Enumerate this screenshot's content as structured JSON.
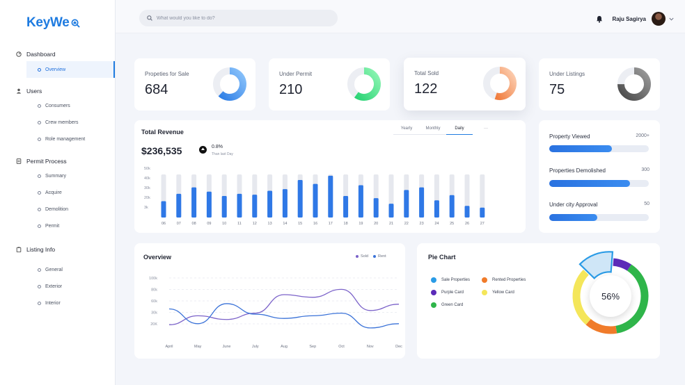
{
  "brand": {
    "name": "KeyWe"
  },
  "sidebar": {
    "sections": [
      {
        "label": "Dashboard",
        "icon": "dashboard-icon",
        "items": [
          {
            "label": "Overview",
            "active": true
          }
        ]
      },
      {
        "label": "Users",
        "icon": "user-icon",
        "items": [
          {
            "label": "Consumers"
          },
          {
            "label": "Crew members"
          },
          {
            "label": "Role management"
          }
        ]
      },
      {
        "label": "Permit Process",
        "icon": "document-icon",
        "items": [
          {
            "label": "Summary"
          },
          {
            "label": "Acquire"
          },
          {
            "label": "Demolition"
          },
          {
            "label": "Permit"
          }
        ]
      },
      {
        "label": "Listing Info",
        "icon": "clipboard-icon",
        "items": [
          {
            "label": "General"
          },
          {
            "label": "Exterior"
          },
          {
            "label": "Interior"
          }
        ]
      }
    ]
  },
  "topbar": {
    "search_placeholder": "What would you like to do?",
    "user_name": "Raju Sagirya"
  },
  "stats": [
    {
      "title": "Propeties for Sale",
      "value": "684",
      "fraction": 0.62,
      "colors": [
        "#2f7fe6",
        "#8cc4fb"
      ]
    },
    {
      "title": "Under Permit",
      "value": "210",
      "fraction": 0.6,
      "colors": [
        "#2bd476",
        "#8ef5b3"
      ]
    },
    {
      "title": "Total Sold",
      "value": "122",
      "fraction": 0.55,
      "colors": [
        "#f07b3c",
        "#fcd0b4"
      ]
    },
    {
      "title": "Under Listings",
      "value": "75",
      "fraction": 0.75,
      "colors": [
        "#4a4a4a",
        "#9a9a9a"
      ]
    }
  ],
  "revenue": {
    "title": "Total Revenue",
    "amount": "$236,535",
    "change": "0.8%",
    "change_label": "Than last Day",
    "tabs": [
      "Yearly",
      "Monthly",
      "Daily"
    ],
    "active_tab": "Daily",
    "more": "···"
  },
  "chart_data": {
    "type": "bar",
    "title": "Total Revenue",
    "y_ticks": [
      "50k",
      "40k",
      "30k",
      "20k",
      "3k"
    ],
    "categories": [
      "06",
      "07",
      "08",
      "09",
      "10",
      "11",
      "12",
      "13",
      "14",
      "15",
      "16",
      "17",
      "18",
      "19",
      "20",
      "21",
      "22",
      "23",
      "24",
      "25",
      "26",
      "27"
    ],
    "values": [
      0.38,
      0.55,
      0.7,
      0.6,
      0.5,
      0.55,
      0.53,
      0.62,
      0.66,
      0.87,
      0.78,
      0.97,
      0.5,
      0.75,
      0.45,
      0.32,
      0.64,
      0.7,
      0.4,
      0.52,
      0.27,
      0.23
    ],
    "max": 1
  },
  "progress": [
    {
      "label": "Property Viewed",
      "value": "2000+",
      "fraction": 0.63
    },
    {
      "label": "Properties Demolished",
      "value": "300",
      "fraction": 0.81
    },
    {
      "label": "Under city Approval",
      "value": "50",
      "fraction": 0.48
    }
  ],
  "overview": {
    "title": "Overview",
    "legend": [
      {
        "label": "Sold",
        "color": "#7b62c9"
      },
      {
        "label": "Rent",
        "color": "#3a72d8"
      }
    ],
    "y_ticks": [
      "100k",
      "80k",
      "60k",
      "30k",
      "20K"
    ],
    "months": [
      "April",
      "May",
      "June",
      "July",
      "Aug",
      "Sep",
      "Oct",
      "Nov",
      "Dec"
    ],
    "series": [
      {
        "name": "Sold",
        "color": "#7b62c9",
        "values": [
          18,
          35,
          28,
          40,
          75,
          70,
          85,
          45,
          57
        ]
      },
      {
        "name": "Rent",
        "color": "#3a72d8",
        "values": [
          48,
          20,
          58,
          38,
          30,
          35,
          40,
          12,
          20
        ]
      }
    ],
    "ymax": 100
  },
  "pie": {
    "title": "Pie Chart",
    "center_label": "56%",
    "legend": [
      {
        "label": "Sale Properties",
        "color": "#2a9be6"
      },
      {
        "label": "Rented Properties",
        "color": "#f07b2a"
      },
      {
        "label": "Purple Card",
        "color": "#5b2bb8"
      },
      {
        "label": "Yellow Card",
        "color": "#f4e65a"
      },
      {
        "label": "Green Card",
        "color": "#2fb54a"
      }
    ],
    "slices": [
      {
        "name": "Purple Card",
        "value": 8,
        "color": "#5b2bb8"
      },
      {
        "name": "Green Card",
        "value": 38,
        "color": "#2fb54a"
      },
      {
        "name": "Rented Properties",
        "value": 14,
        "color": "#f07b2a"
      },
      {
        "name": "Yellow Card",
        "value": 26,
        "color": "#f4e65a"
      },
      {
        "name": "Sale Properties",
        "value": 14,
        "color": "#cfe6f7"
      }
    ]
  }
}
